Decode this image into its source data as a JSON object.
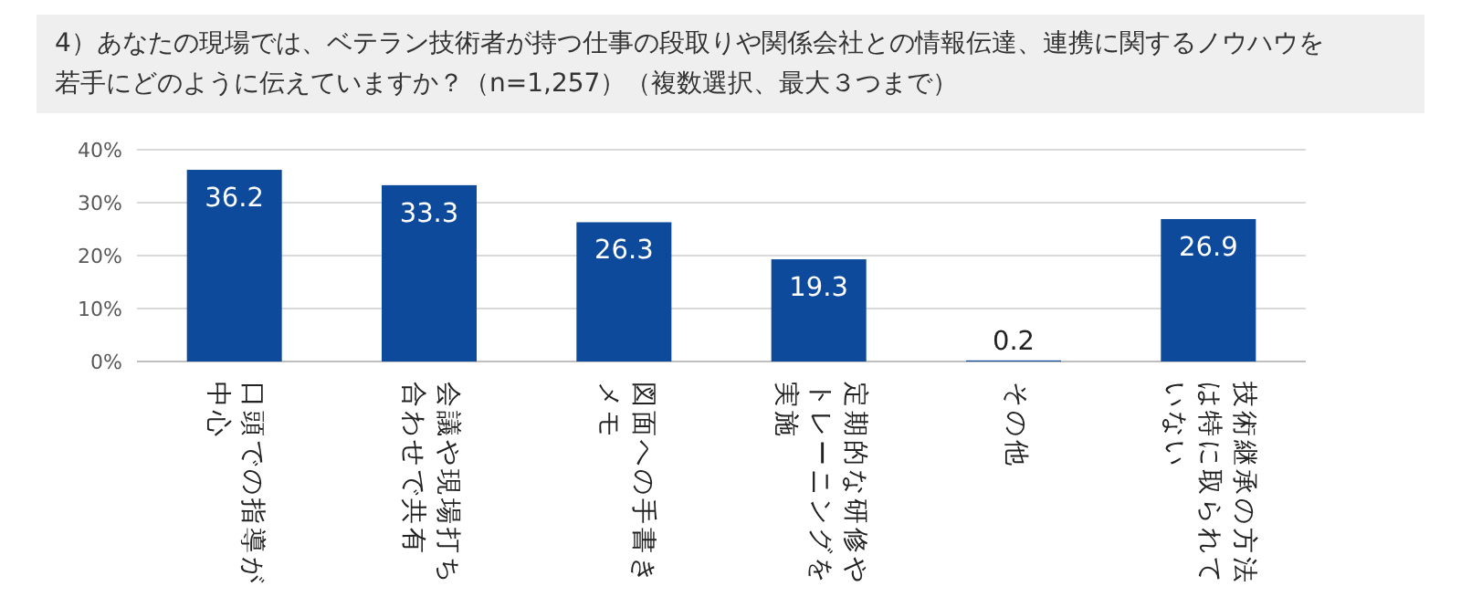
{
  "chart_data": {
    "type": "bar",
    "title": "4）あなたの現場では、ベテラン技術者が持つ仕事の段取りや関係会社との情報伝達、連携に関するノウハウを若手にどのように伝えていますか？（n=1,257）（複数選択、最大３つまで）",
    "categories": [
      "口頭での指導が中心",
      "会議や現場打ち合わせで共有",
      "図面への手書きメモ",
      "定期的な研修やトレーニングを実施",
      "その他",
      "技術継承の方法は特に取られていない"
    ],
    "values": [
      36.2,
      33.3,
      26.3,
      19.3,
      0.2,
      26.9
    ],
    "color": "#0d4a9c",
    "ylim": [
      0,
      40
    ],
    "yticks": [
      {
        "value": 0,
        "label": "0%"
      },
      {
        "value": 10,
        "label": "10%"
      },
      {
        "value": 20,
        "label": "20%"
      },
      {
        "value": 30,
        "label": "30%"
      },
      {
        "value": 40,
        "label": "40%"
      }
    ],
    "grid": "y",
    "data_labels": true
  }
}
